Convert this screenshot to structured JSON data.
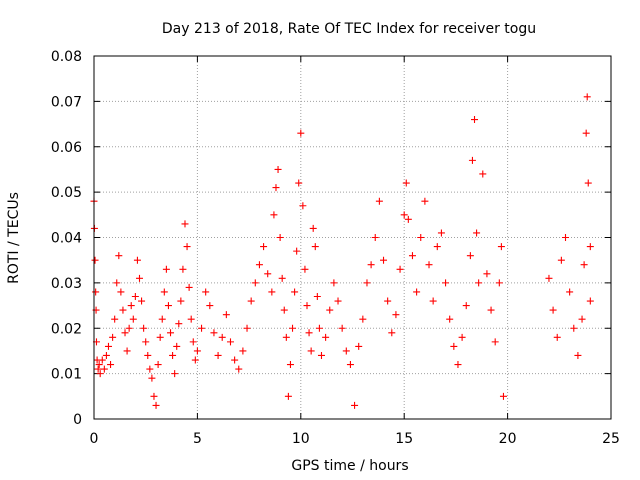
{
  "chart_data": {
    "type": "scatter",
    "title": "Day 213 of 2018, Rate Of TEC Index for receiver togu",
    "xlabel": "GPS time / hours",
    "ylabel": "ROTI / TECUs",
    "xlim": [
      0,
      25
    ],
    "ylim": [
      0,
      0.08
    ],
    "xticks": [
      0,
      5,
      10,
      15,
      20,
      25
    ],
    "xtick_labels": [
      "0",
      "5",
      "10",
      "15",
      "20",
      "25"
    ],
    "yticks": [
      0,
      0.01,
      0.02,
      0.03,
      0.04,
      0.05,
      0.06,
      0.07,
      0.08
    ],
    "ytick_labels": [
      "0",
      "0.01",
      "0.02",
      "0.03",
      "0.04",
      "0.05",
      "0.06",
      "0.07",
      "0.08"
    ],
    "grid": true,
    "marker": "plus",
    "color": "#ff0000",
    "series": [
      {
        "points": [
          [
            0.0,
            0.048
          ],
          [
            0.02,
            0.042
          ],
          [
            0.05,
            0.035
          ],
          [
            0.08,
            0.028
          ],
          [
            0.1,
            0.024
          ],
          [
            0.12,
            0.017
          ],
          [
            0.15,
            0.013
          ],
          [
            0.2,
            0.011
          ],
          [
            0.25,
            0.012
          ],
          [
            0.3,
            0.01
          ],
          [
            0.4,
            0.013
          ],
          [
            0.5,
            0.011
          ],
          [
            0.6,
            0.014
          ],
          [
            0.7,
            0.016
          ],
          [
            0.8,
            0.012
          ],
          [
            0.9,
            0.018
          ],
          [
            1.0,
            0.022
          ],
          [
            1.1,
            0.03
          ],
          [
            1.2,
            0.036
          ],
          [
            1.3,
            0.028
          ],
          [
            1.4,
            0.024
          ],
          [
            1.5,
            0.019
          ],
          [
            1.6,
            0.015
          ],
          [
            1.7,
            0.02
          ],
          [
            1.8,
            0.025
          ],
          [
            1.9,
            0.022
          ],
          [
            2.0,
            0.027
          ],
          [
            2.1,
            0.035
          ],
          [
            2.2,
            0.031
          ],
          [
            2.3,
            0.026
          ],
          [
            2.4,
            0.02
          ],
          [
            2.5,
            0.017
          ],
          [
            2.6,
            0.014
          ],
          [
            2.7,
            0.011
          ],
          [
            2.8,
            0.009
          ],
          [
            2.9,
            0.005
          ],
          [
            3.0,
            0.003
          ],
          [
            3.1,
            0.012
          ],
          [
            3.2,
            0.018
          ],
          [
            3.3,
            0.022
          ],
          [
            3.4,
            0.028
          ],
          [
            3.5,
            0.033
          ],
          [
            3.6,
            0.025
          ],
          [
            3.7,
            0.019
          ],
          [
            3.8,
            0.014
          ],
          [
            3.9,
            0.01
          ],
          [
            4.0,
            0.016
          ],
          [
            4.1,
            0.021
          ],
          [
            4.2,
            0.026
          ],
          [
            4.3,
            0.033
          ],
          [
            4.4,
            0.043
          ],
          [
            4.5,
            0.038
          ],
          [
            4.6,
            0.029
          ],
          [
            4.7,
            0.022
          ],
          [
            4.8,
            0.017
          ],
          [
            4.9,
            0.013
          ],
          [
            5.0,
            0.015
          ],
          [
            5.2,
            0.02
          ],
          [
            5.4,
            0.028
          ],
          [
            5.6,
            0.025
          ],
          [
            5.8,
            0.019
          ],
          [
            6.0,
            0.014
          ],
          [
            6.2,
            0.018
          ],
          [
            6.4,
            0.023
          ],
          [
            6.6,
            0.017
          ],
          [
            6.8,
            0.013
          ],
          [
            7.0,
            0.011
          ],
          [
            7.2,
            0.015
          ],
          [
            7.4,
            0.02
          ],
          [
            7.6,
            0.026
          ],
          [
            7.8,
            0.03
          ],
          [
            8.0,
            0.034
          ],
          [
            8.2,
            0.038
          ],
          [
            8.4,
            0.032
          ],
          [
            8.6,
            0.028
          ],
          [
            8.7,
            0.045
          ],
          [
            8.8,
            0.051
          ],
          [
            8.9,
            0.055
          ],
          [
            9.0,
            0.04
          ],
          [
            9.1,
            0.031
          ],
          [
            9.2,
            0.024
          ],
          [
            9.3,
            0.018
          ],
          [
            9.4,
            0.005
          ],
          [
            9.5,
            0.012
          ],
          [
            9.6,
            0.02
          ],
          [
            9.7,
            0.028
          ],
          [
            9.8,
            0.037
          ],
          [
            9.9,
            0.052
          ],
          [
            10.0,
            0.063
          ],
          [
            10.1,
            0.047
          ],
          [
            10.2,
            0.033
          ],
          [
            10.3,
            0.025
          ],
          [
            10.4,
            0.019
          ],
          [
            10.5,
            0.015
          ],
          [
            10.6,
            0.042
          ],
          [
            10.7,
            0.038
          ],
          [
            10.8,
            0.027
          ],
          [
            10.9,
            0.02
          ],
          [
            11.0,
            0.014
          ],
          [
            11.2,
            0.018
          ],
          [
            11.4,
            0.024
          ],
          [
            11.6,
            0.03
          ],
          [
            11.8,
            0.026
          ],
          [
            12.0,
            0.02
          ],
          [
            12.2,
            0.015
          ],
          [
            12.4,
            0.012
          ],
          [
            12.6,
            0.003
          ],
          [
            12.8,
            0.016
          ],
          [
            13.0,
            0.022
          ],
          [
            13.2,
            0.03
          ],
          [
            13.4,
            0.034
          ],
          [
            13.6,
            0.04
          ],
          [
            13.8,
            0.048
          ],
          [
            14.0,
            0.035
          ],
          [
            14.2,
            0.026
          ],
          [
            14.4,
            0.019
          ],
          [
            14.6,
            0.023
          ],
          [
            14.8,
            0.033
          ],
          [
            15.0,
            0.045
          ],
          [
            15.1,
            0.052
          ],
          [
            15.2,
            0.044
          ],
          [
            15.4,
            0.036
          ],
          [
            15.6,
            0.028
          ],
          [
            15.8,
            0.04
          ],
          [
            16.0,
            0.048
          ],
          [
            16.2,
            0.034
          ],
          [
            16.4,
            0.026
          ],
          [
            16.6,
            0.038
          ],
          [
            16.8,
            0.041
          ],
          [
            17.0,
            0.03
          ],
          [
            17.2,
            0.022
          ],
          [
            17.4,
            0.016
          ],
          [
            17.6,
            0.012
          ],
          [
            17.8,
            0.018
          ],
          [
            18.0,
            0.025
          ],
          [
            18.2,
            0.036
          ],
          [
            18.3,
            0.057
          ],
          [
            18.4,
            0.066
          ],
          [
            18.5,
            0.041
          ],
          [
            18.6,
            0.03
          ],
          [
            18.8,
            0.054
          ],
          [
            19.0,
            0.032
          ],
          [
            19.2,
            0.024
          ],
          [
            19.4,
            0.017
          ],
          [
            19.6,
            0.03
          ],
          [
            19.7,
            0.038
          ],
          [
            19.8,
            0.005
          ],
          [
            22.0,
            0.031
          ],
          [
            22.2,
            0.024
          ],
          [
            22.4,
            0.018
          ],
          [
            22.6,
            0.035
          ],
          [
            22.8,
            0.04
          ],
          [
            23.0,
            0.028
          ],
          [
            23.2,
            0.02
          ],
          [
            23.4,
            0.014
          ],
          [
            23.6,
            0.022
          ],
          [
            23.7,
            0.034
          ],
          [
            23.8,
            0.063
          ],
          [
            23.85,
            0.071
          ],
          [
            23.9,
            0.052
          ],
          [
            24.0,
            0.038
          ],
          [
            24.0,
            0.026
          ]
        ]
      }
    ]
  }
}
